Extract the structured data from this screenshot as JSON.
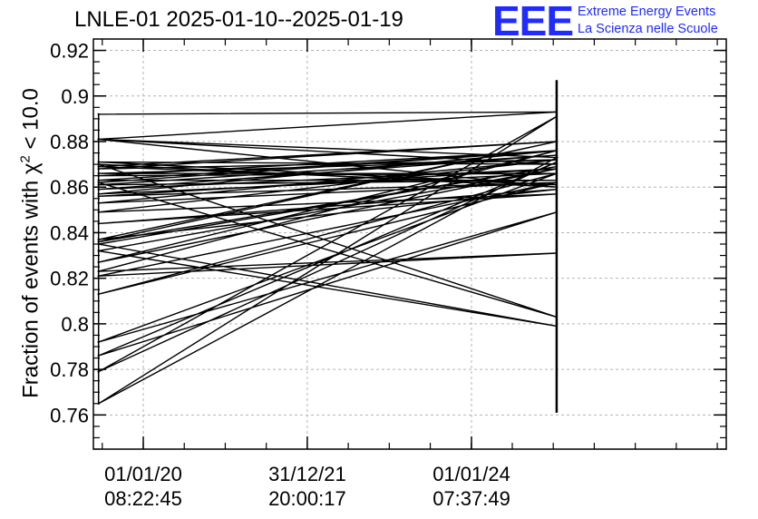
{
  "header": {
    "title": "LNLE-01 2025-01-10--2025-01-19",
    "logo_text": "EEE",
    "logo_line1": "Extreme Energy Events",
    "logo_line2": "La Scienza nelle Scuole",
    "accent_color": "#1f2bff"
  },
  "chart_data": {
    "type": "line",
    "ylabel_prefix": "Fraction of events with ",
    "ylabel_symbol": "χ",
    "ylabel_exp": "2",
    "ylabel_suffix": " < 10.0",
    "ylim": [
      0.745,
      0.925
    ],
    "yticks": [
      0.76,
      0.78,
      0.8,
      0.82,
      0.84,
      0.86,
      0.88,
      0.9,
      0.92
    ],
    "ytick_labels": [
      "0.76",
      "0.78",
      "0.8",
      "0.82",
      "0.84",
      "0.86",
      "0.88",
      "0.9",
      "0.92"
    ],
    "x_range": [
      "2019-05-24",
      "2027-02-08"
    ],
    "x_ticks": [
      {
        "date": "2020-01-01",
        "line1": "01/01/20",
        "line2": "08:22:45"
      },
      {
        "date": "2021-12-31",
        "line1": "31/12/21",
        "line2": "20:00:17"
      },
      {
        "date": "2024-01-01",
        "line1": "01/01/24",
        "line2": "07:37:49"
      }
    ],
    "grid": true,
    "series_color": "#000000",
    "left_date": "2019-06-16",
    "right_date": "2025-01-14",
    "left_values": [
      0.892,
      0.881,
      0.871,
      0.869,
      0.868,
      0.866,
      0.865,
      0.863,
      0.861,
      0.859,
      0.856,
      0.853,
      0.849,
      0.844,
      0.837,
      0.836,
      0.835,
      0.832,
      0.827,
      0.823,
      0.821,
      0.813,
      0.792,
      0.786,
      0.779,
      0.765,
      0.881,
      0.87,
      0.862,
      0.857
    ],
    "right_values": [
      0.893,
      0.87,
      0.861,
      0.88,
      0.872,
      0.866,
      0.876,
      0.863,
      0.874,
      0.868,
      0.862,
      0.872,
      0.857,
      0.859,
      0.88,
      0.869,
      0.799,
      0.868,
      0.876,
      0.831,
      0.862,
      0.866,
      0.849,
      0.871,
      0.891,
      0.873,
      0.86,
      0.803,
      0.876,
      0.866
    ],
    "right_spread": [
      0.761,
      0.907
    ]
  }
}
